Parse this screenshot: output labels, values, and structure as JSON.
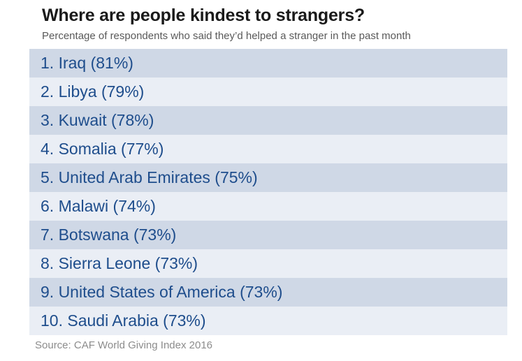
{
  "title": "Where are people kindest to strangers?",
  "subtitle": "Percentage of respondents who said they’d helped a stranger in the past month",
  "source": "Source: CAF World Giving Index 2016",
  "colors": {
    "row_dark": "#cfd8e6",
    "row_light": "#eaeef5",
    "text": "#1e4d8c"
  },
  "chart_data": {
    "type": "table",
    "title": "Where are people kindest to strangers?",
    "subtitle": "Percentage of respondents who said they’d helped a stranger in the past month",
    "rows": [
      {
        "rank": 1,
        "country": "Iraq",
        "value": 81,
        "label": "1. Iraq (81%)"
      },
      {
        "rank": 2,
        "country": "Libya",
        "value": 79,
        "label": "2. Libya (79%)"
      },
      {
        "rank": 3,
        "country": "Kuwait",
        "value": 78,
        "label": "3. Kuwait (78%)"
      },
      {
        "rank": 4,
        "country": "Somalia",
        "value": 77,
        "label": "4. Somalia (77%)"
      },
      {
        "rank": 5,
        "country": "United Arab Emirates",
        "value": 75,
        "label": "5. United Arab Emirates (75%)"
      },
      {
        "rank": 6,
        "country": "Malawi",
        "value": 74,
        "label": "6. Malawi (74%)"
      },
      {
        "rank": 7,
        "country": "Botswana",
        "value": 73,
        "label": "7. Botswana (73%)"
      },
      {
        "rank": 8,
        "country": "Sierra Leone",
        "value": 73,
        "label": "8. Sierra Leone (73%)"
      },
      {
        "rank": 9,
        "country": "United States of America",
        "value": 73,
        "label": "9. United States of America (73%)"
      },
      {
        "rank": 10,
        "country": "Saudi Arabia",
        "value": 73,
        "label": "10. Saudi Arabia (73%)"
      }
    ],
    "source": "Source: CAF World Giving Index 2016"
  }
}
